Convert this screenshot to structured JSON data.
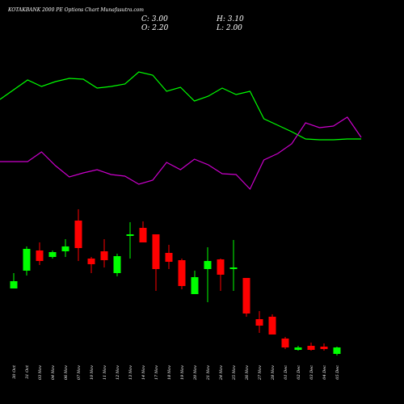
{
  "chart_data": {
    "type": "candlestick",
    "title": "KOTAKBANK 2000 PE Options Chart Munafasutra.com",
    "ohlc_labels": {
      "close": "C: 3.00",
      "high": "H: 3.10",
      "open": "O: 2.20",
      "low": "L: 2.00"
    },
    "categories": [
      "30 Oct",
      "31 Oct",
      "03 Nov",
      "04 Nov",
      "06 Nov",
      "07 Nov",
      "10 Nov",
      "11 Nov",
      "12 Nov",
      "13 Nov",
      "14 Nov",
      "17 Nov",
      "18 Nov",
      "19 Nov",
      "20 Nov",
      "21 Nov",
      "24 Nov",
      "25 Nov",
      "26 Nov",
      "27 Nov",
      "28 Nov",
      "01 Dec",
      "02 Dec",
      "03 Dec",
      "04 Dec",
      "05 Dec"
    ],
    "open": [
      10.3,
      12.5,
      15.0,
      14.2,
      14.9,
      18.7,
      14.0,
      14.9,
      12.2,
      16.8,
      17.8,
      17.0,
      14.7,
      13.8,
      9.6,
      12.7,
      13.9,
      12.7,
      11.6,
      6.5,
      6.8,
      4.1,
      2.7,
      3.2,
      3.1,
      2.2
    ],
    "high": [
      12.2,
      15.5,
      16.0,
      15.0,
      16.4,
      20.1,
      14.2,
      16.4,
      14.6,
      18.5,
      18.6,
      17.0,
      15.7,
      14.0,
      12.5,
      15.4,
      14.0,
      16.3,
      11.6,
      7.5,
      7.1,
      4.3,
      3.2,
      3.6,
      3.5,
      3.1
    ],
    "low": [
      10.3,
      11.9,
      13.2,
      14.0,
      14.2,
      13.7,
      12.2,
      12.9,
      11.8,
      14.0,
      16.0,
      10.0,
      12.7,
      10.2,
      9.6,
      8.6,
      10.0,
      10.0,
      6.8,
      4.8,
      4.6,
      2.8,
      2.6,
      2.6,
      2.6,
      2.0
    ],
    "close": [
      11.2,
      15.2,
      13.7,
      14.8,
      15.5,
      15.3,
      13.3,
      13.8,
      14.3,
      17.0,
      16.0,
      12.7,
      13.6,
      10.6,
      11.7,
      13.7,
      12.0,
      12.9,
      7.2,
      5.7,
      4.6,
      3.0,
      3.0,
      2.7,
      2.8,
      3.0
    ],
    "up_color": "#00ff00",
    "down_color": "#ff0000",
    "ylim": [
      0,
      21
    ],
    "y2lim": [
      0,
      100
    ],
    "series": [
      {
        "color": "#00ff00",
        "axis": "y2",
        "values": [
          68.5,
          80.5,
          76.5,
          79.5,
          81.5,
          81,
          75.5,
          76.5,
          78,
          85.5,
          83.5,
          73.5,
          76,
          67.5,
          70.5,
          75.5,
          71.5,
          73.5,
          56.5,
          52.5,
          48.5,
          44,
          43.5,
          43.5,
          44,
          44
        ]
      },
      {
        "color": "#cc00cc",
        "axis": "y2",
        "values": [
          30,
          30,
          36,
          27.5,
          20.5,
          23,
          25,
          22,
          21,
          16,
          18.5,
          29.5,
          25,
          31.5,
          28,
          22.5,
          22,
          13,
          31,
          35,
          41,
          54,
          51,
          52,
          57.5,
          45
        ]
      }
    ]
  }
}
